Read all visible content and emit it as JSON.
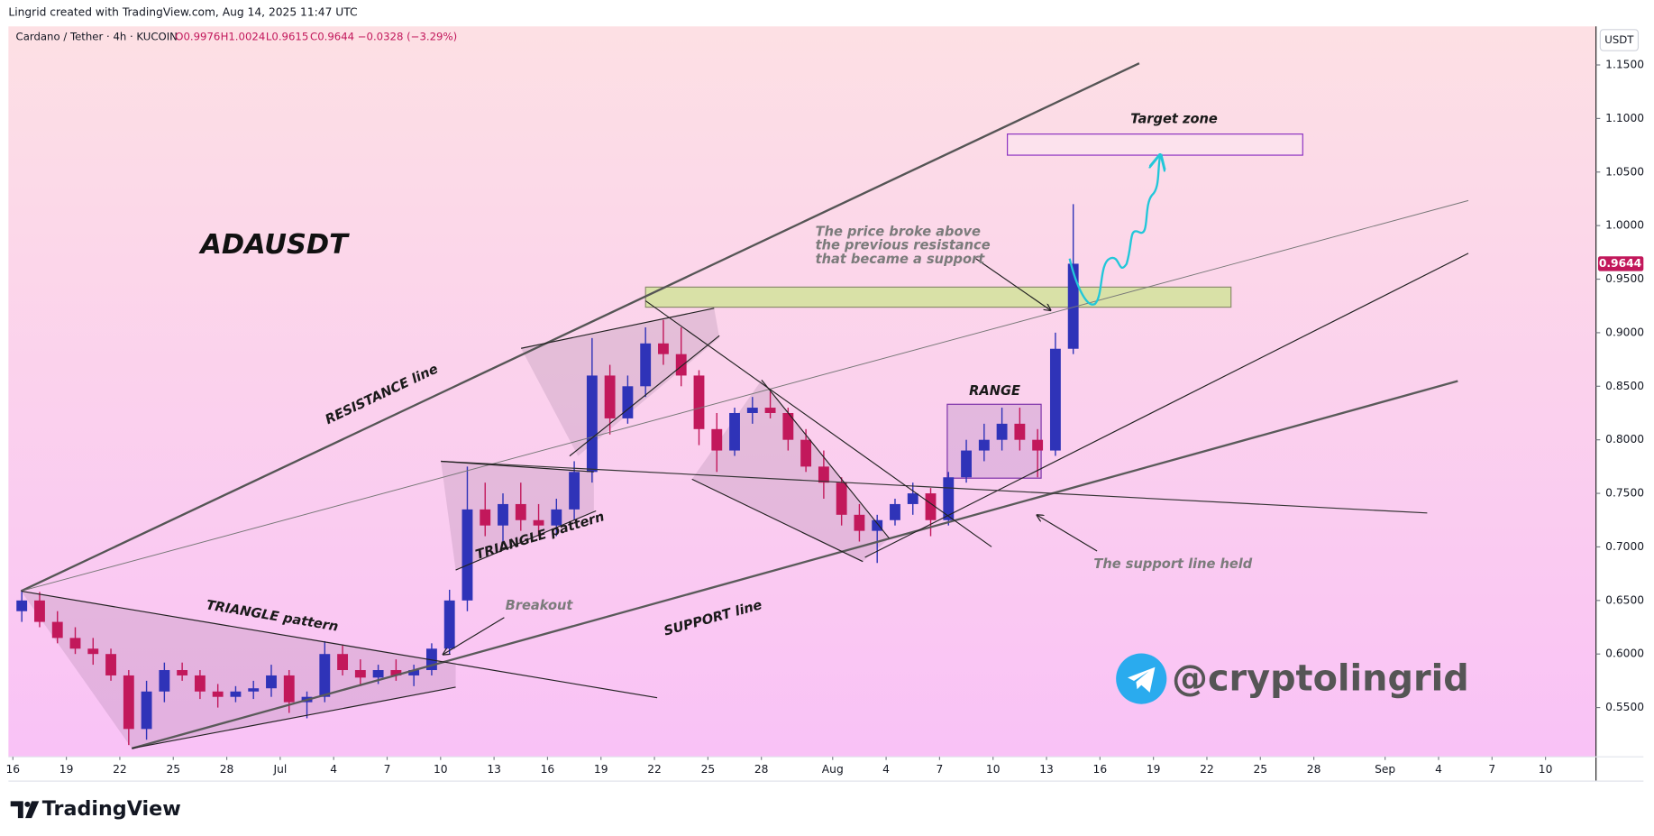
{
  "header": {
    "attribution": "Lingrid created with TradingView.com, Aug 14, 2025 11:47 UTC"
  },
  "chart_data": {
    "type": "candlestick",
    "symbol": "Cardano / Tether · 4h · KUCOIN",
    "ohlc_legend": [
      "O0.9976",
      "H1.0024",
      "L0.9615",
      "C0.9644",
      "−0.0328 (−3.29%)"
    ],
    "currency": "USDT",
    "last_price": 0.9644,
    "up_color": "#2f33b8",
    "down_color": "#c2185b",
    "x": [
      "2025-06-16",
      "2025-06-17",
      "2025-06-18",
      "2025-06-19",
      "2025-06-20",
      "2025-06-21",
      "2025-06-22",
      "2025-06-23",
      "2025-06-24",
      "2025-06-25",
      "2025-06-26",
      "2025-06-27",
      "2025-06-28",
      "2025-06-29",
      "2025-06-30",
      "2025-07-01",
      "2025-07-02",
      "2025-07-03",
      "2025-07-04",
      "2025-07-05",
      "2025-07-06",
      "2025-07-07",
      "2025-07-08",
      "2025-07-09",
      "2025-07-10",
      "2025-07-11",
      "2025-07-12",
      "2025-07-13",
      "2025-07-14",
      "2025-07-15",
      "2025-07-16",
      "2025-07-17",
      "2025-07-18",
      "2025-07-19",
      "2025-07-20",
      "2025-07-21",
      "2025-07-22",
      "2025-07-23",
      "2025-07-24",
      "2025-07-25",
      "2025-07-26",
      "2025-07-27",
      "2025-07-28",
      "2025-07-29",
      "2025-07-30",
      "2025-07-31",
      "2025-08-01",
      "2025-08-02",
      "2025-08-03",
      "2025-08-04",
      "2025-08-05",
      "2025-08-06",
      "2025-08-07",
      "2025-08-08",
      "2025-08-09",
      "2025-08-10",
      "2025-08-11",
      "2025-08-12",
      "2025-08-13",
      "2025-08-14"
    ],
    "open": [
      0.64,
      0.65,
      0.63,
      0.615,
      0.605,
      0.6,
      0.58,
      0.53,
      0.565,
      0.585,
      0.58,
      0.565,
      0.56,
      0.565,
      0.568,
      0.58,
      0.555,
      0.56,
      0.6,
      0.585,
      0.578,
      0.585,
      0.58,
      0.585,
      0.605,
      0.65,
      0.735,
      0.72,
      0.74,
      0.725,
      0.72,
      0.735,
      0.77,
      0.86,
      0.82,
      0.85,
      0.89,
      0.88,
      0.86,
      0.81,
      0.79,
      0.825,
      0.83,
      0.825,
      0.8,
      0.775,
      0.76,
      0.73,
      0.715,
      0.725,
      0.74,
      0.75,
      0.725,
      0.765,
      0.79,
      0.8,
      0.815,
      0.8,
      0.79,
      0.885
    ],
    "high": [
      0.66,
      0.658,
      0.64,
      0.625,
      0.615,
      0.605,
      0.585,
      0.575,
      0.592,
      0.592,
      0.585,
      0.572,
      0.57,
      0.575,
      0.59,
      0.585,
      0.565,
      0.612,
      0.608,
      0.595,
      0.59,
      0.595,
      0.59,
      0.61,
      0.66,
      0.775,
      0.76,
      0.75,
      0.76,
      0.74,
      0.745,
      0.78,
      0.895,
      0.87,
      0.86,
      0.905,
      0.912,
      0.905,
      0.865,
      0.825,
      0.83,
      0.84,
      0.845,
      0.83,
      0.81,
      0.79,
      0.765,
      0.74,
      0.73,
      0.745,
      0.76,
      0.755,
      0.77,
      0.8,
      0.815,
      0.83,
      0.83,
      0.81,
      0.9,
      1.02
    ],
    "low": [
      0.63,
      0.625,
      0.61,
      0.6,
      0.59,
      0.575,
      0.515,
      0.52,
      0.555,
      0.575,
      0.558,
      0.55,
      0.555,
      0.558,
      0.56,
      0.545,
      0.54,
      0.555,
      0.58,
      0.57,
      0.572,
      0.575,
      0.57,
      0.58,
      0.6,
      0.64,
      0.71,
      0.705,
      0.715,
      0.71,
      0.71,
      0.725,
      0.76,
      0.805,
      0.815,
      0.84,
      0.87,
      0.85,
      0.795,
      0.77,
      0.785,
      0.815,
      0.82,
      0.79,
      0.77,
      0.745,
      0.72,
      0.705,
      0.685,
      0.72,
      0.73,
      0.71,
      0.72,
      0.76,
      0.78,
      0.79,
      0.79,
      0.765,
      0.785,
      0.88
    ],
    "close": [
      0.65,
      0.63,
      0.615,
      0.605,
      0.6,
      0.58,
      0.53,
      0.565,
      0.585,
      0.58,
      0.565,
      0.56,
      0.565,
      0.568,
      0.58,
      0.555,
      0.56,
      0.6,
      0.585,
      0.578,
      0.585,
      0.58,
      0.585,
      0.605,
      0.65,
      0.735,
      0.72,
      0.74,
      0.725,
      0.72,
      0.735,
      0.77,
      0.86,
      0.82,
      0.85,
      0.89,
      0.88,
      0.86,
      0.81,
      0.79,
      0.825,
      0.83,
      0.825,
      0.8,
      0.775,
      0.76,
      0.73,
      0.715,
      0.725,
      0.74,
      0.75,
      0.725,
      0.765,
      0.79,
      0.8,
      0.815,
      0.8,
      0.79,
      0.885,
      0.9644
    ],
    "xlim": [
      "2025-06-15T18:00",
      "2025-09-12T20:00"
    ],
    "xticks": [
      {
        "value": "2025-06-16",
        "label": "16"
      },
      {
        "value": "2025-06-19",
        "label": "19"
      },
      {
        "value": "2025-06-22",
        "label": "22"
      },
      {
        "value": "2025-06-25",
        "label": "25"
      },
      {
        "value": "2025-06-28",
        "label": "28"
      },
      {
        "value": "2025-07-01",
        "label": "Jul"
      },
      {
        "value": "2025-07-04",
        "label": "4"
      },
      {
        "value": "2025-07-07",
        "label": "7"
      },
      {
        "value": "2025-07-10",
        "label": "10"
      },
      {
        "value": "2025-07-13",
        "label": "13"
      },
      {
        "value": "2025-07-16",
        "label": "16"
      },
      {
        "value": "2025-07-19",
        "label": "19"
      },
      {
        "value": "2025-07-22",
        "label": "22"
      },
      {
        "value": "2025-07-25",
        "label": "25"
      },
      {
        "value": "2025-07-28",
        "label": "28"
      },
      {
        "value": "2025-08-01",
        "label": "Aug"
      },
      {
        "value": "2025-08-04",
        "label": "4"
      },
      {
        "value": "2025-08-07",
        "label": "7"
      },
      {
        "value": "2025-08-10",
        "label": "10"
      },
      {
        "value": "2025-08-13",
        "label": "13"
      },
      {
        "value": "2025-08-16",
        "label": "16"
      },
      {
        "value": "2025-08-19",
        "label": "19"
      },
      {
        "value": "2025-08-22",
        "label": "22"
      },
      {
        "value": "2025-08-25",
        "label": "25"
      },
      {
        "value": "2025-08-28",
        "label": "28"
      },
      {
        "value": "2025-09-01",
        "label": "Sep"
      },
      {
        "value": "2025-09-04",
        "label": "4"
      },
      {
        "value": "2025-09-07",
        "label": "7"
      },
      {
        "value": "2025-09-10",
        "label": "10"
      }
    ],
    "ylim": [
      0.504,
      1.186
    ],
    "yticks": [
      {
        "value": 0.55,
        "label": "0.5500"
      },
      {
        "value": 0.6,
        "label": "0.6000"
      },
      {
        "value": 0.65,
        "label": "0.6500"
      },
      {
        "value": 0.7,
        "label": "0.7000"
      },
      {
        "value": 0.75,
        "label": "0.7500"
      },
      {
        "value": 0.8,
        "label": "0.8000"
      },
      {
        "value": 0.85,
        "label": "0.8500"
      },
      {
        "value": 0.9,
        "label": "0.9000"
      },
      {
        "value": 0.95,
        "label": "0.9500"
      },
      {
        "value": 1.0,
        "label": "1.0000"
      },
      {
        "value": 1.05,
        "label": "1.0500"
      },
      {
        "value": 1.1,
        "label": "1.1000"
      },
      {
        "value": 1.15,
        "label": "1.1500"
      }
    ],
    "grid": false,
    "annotations": {
      "symbol_title": "ADAUSDT",
      "target_zone": "Target zone",
      "resistance_note": [
        "The price broke above",
        "the previous resistance",
        "that became a support"
      ],
      "resistance_line": "RESISTANCE line",
      "triangle_1": "TRIANGLE pattern",
      "triangle_2": "TRIANGLE pattern",
      "breakout": "Breakout",
      "support_line": "SUPPORT line",
      "range": "RANGE",
      "support_held": "The support line held",
      "watermark": "@cryptolingrid"
    }
  },
  "footer": {
    "brand": "TradingView"
  }
}
